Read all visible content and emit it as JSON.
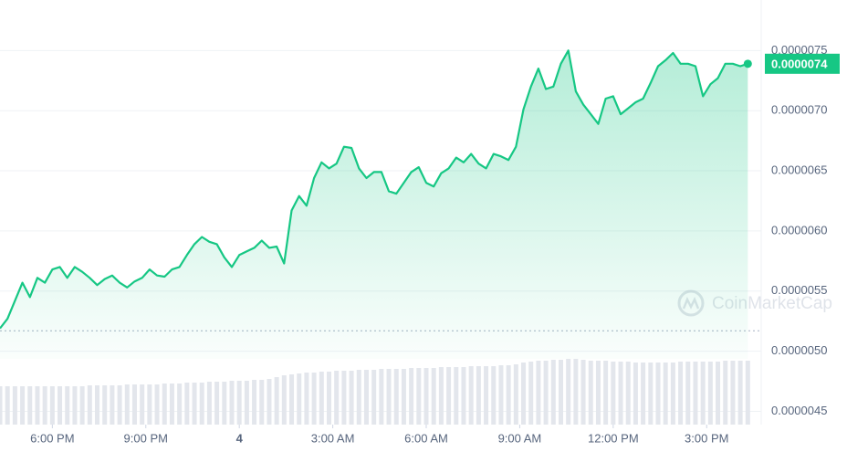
{
  "chart_data": {
    "type": "line",
    "x": [
      16.32,
      16.56,
      16.8,
      17.04,
      17.28,
      17.52,
      17.76,
      18,
      18.24,
      18.48,
      18.72,
      18.96,
      19.2,
      19.44,
      19.68,
      19.92,
      20.16,
      20.4,
      20.64,
      20.88,
      21.12,
      21.36,
      21.6,
      21.84,
      22.08,
      22.32,
      22.56,
      22.8,
      23.04,
      23.28,
      23.52,
      23.76,
      24,
      24.24,
      24.48,
      24.72,
      24.96,
      25.2,
      25.44,
      25.68,
      25.92,
      26.16,
      26.4,
      26.64,
      26.88,
      27.12,
      27.36,
      27.6,
      27.84,
      28.08,
      28.32,
      28.56,
      28.8,
      29.04,
      29.28,
      29.52,
      29.76,
      30,
      30.24,
      30.48,
      30.72,
      30.96,
      31.2,
      31.44,
      31.68,
      31.92,
      32.16,
      32.4,
      32.64,
      32.88,
      33.12,
      33.36,
      33.6,
      33.84,
      34.08,
      34.32,
      34.56,
      34.8,
      35.04,
      35.28,
      35.52,
      35.76,
      36,
      36.24,
      36.48,
      36.72,
      36.96,
      37.2,
      37.44,
      37.68,
      37.92,
      38.16,
      38.4,
      38.64,
      38.88,
      39.12,
      39.36,
      39.6,
      39.84,
      40.08,
      40.32
    ],
    "series": [
      {
        "color": "#16c784",
        "values": [
          5.19e-06,
          5.27e-06,
          5.42e-06,
          5.57e-06,
          5.45e-06,
          5.61e-06,
          5.57e-06,
          5.68e-06,
          5.7e-06,
          5.61e-06,
          5.7e-06,
          5.66e-06,
          5.61e-06,
          5.55e-06,
          5.6e-06,
          5.63e-06,
          5.57e-06,
          5.53e-06,
          5.58e-06,
          5.61e-06,
          5.68e-06,
          5.63e-06,
          5.62e-06,
          5.68e-06,
          5.7e-06,
          5.8e-06,
          5.89e-06,
          5.95e-06,
          5.91e-06,
          5.89e-06,
          5.78e-06,
          5.7e-06,
          5.8e-06,
          5.83e-06,
          5.86e-06,
          5.92e-06,
          5.86e-06,
          5.87e-06,
          5.73e-06,
          6.17e-06,
          6.29e-06,
          6.21e-06,
          6.44e-06,
          6.57e-06,
          6.52e-06,
          6.56e-06,
          6.7e-06,
          6.69e-06,
          6.52e-06,
          6.44e-06,
          6.49e-06,
          6.49e-06,
          6.33e-06,
          6.31e-06,
          6.4e-06,
          6.49e-06,
          6.53e-06,
          6.4e-06,
          6.37e-06,
          6.48e-06,
          6.52e-06,
          6.61e-06,
          6.57e-06,
          6.64e-06,
          6.56e-06,
          6.52e-06,
          6.64e-06,
          6.62e-06,
          6.59e-06,
          6.7e-06,
          7.01e-06,
          7.2e-06,
          7.35e-06,
          7.18e-06,
          7.2e-06,
          7.39e-06,
          7.5e-06,
          7.16e-06,
          7.05e-06,
          6.97e-06,
          6.89e-06,
          7.1e-06,
          7.12e-06,
          6.97e-06,
          7.02e-06,
          7.07e-06,
          7.1e-06,
          7.23e-06,
          7.37e-06,
          7.42e-06,
          7.48e-06,
          7.39e-06,
          7.39e-06,
          7.37e-06,
          7.12e-06,
          7.22e-06,
          7.27e-06,
          7.39e-06,
          7.39e-06,
          7.37e-06,
          7.39e-06
        ]
      }
    ],
    "volume": [
      42,
      42,
      42,
      42,
      42,
      42,
      42,
      42,
      42,
      42,
      42,
      42,
      43,
      43,
      43,
      43,
      43,
      44,
      44,
      44,
      44,
      44,
      45,
      45,
      45,
      46,
      46,
      46,
      47,
      47,
      47,
      48,
      48,
      48,
      49,
      49,
      50,
      52,
      54,
      55,
      56,
      57,
      57,
      58,
      58,
      59,
      59,
      59,
      60,
      60,
      60,
      61,
      61,
      61,
      61,
      62,
      62,
      62,
      62,
      63,
      63,
      63,
      63,
      64,
      64,
      64,
      64,
      65,
      65,
      66,
      68,
      69,
      70,
      70,
      71,
      71,
      72,
      72,
      71,
      70,
      70,
      70,
      69,
      69,
      69,
      68,
      68,
      68,
      68,
      68,
      68,
      69,
      69,
      69,
      69,
      69,
      69,
      70,
      70,
      70,
      70
    ],
    "xlim": [
      16.32,
      40.75
    ],
    "ylim": [
      4.39e-06,
      7.92e-06
    ],
    "xticks": [
      {
        "value": 18,
        "label": "6:00 PM"
      },
      {
        "value": 21,
        "label": "9:00 PM"
      },
      {
        "value": 24,
        "label": "4"
      },
      {
        "value": 27,
        "label": "3:00 AM"
      },
      {
        "value": 30,
        "label": "6:00 AM"
      },
      {
        "value": 33,
        "label": "9:00 AM"
      },
      {
        "value": 36,
        "label": "12:00 PM"
      },
      {
        "value": 39,
        "label": "3:00 PM"
      }
    ],
    "yticks": [
      {
        "value": 4.5e-06,
        "label": "0.0000045"
      },
      {
        "value": 5e-06,
        "label": "0.0000050"
      },
      {
        "value": 5.5e-06,
        "label": "0.0000055"
      },
      {
        "value": 6e-06,
        "label": "0.0000060"
      },
      {
        "value": 6.5e-06,
        "label": "0.0000065"
      },
      {
        "value": 7e-06,
        "label": "0.0000070"
      },
      {
        "value": 7.5e-06,
        "label": "0.0000075"
      }
    ],
    "reference_line": 5.17e-06,
    "current_price": {
      "value": 7.39e-06,
      "label": "0.0000074"
    },
    "watermark": "CoinMarketCap",
    "grid": true
  }
}
